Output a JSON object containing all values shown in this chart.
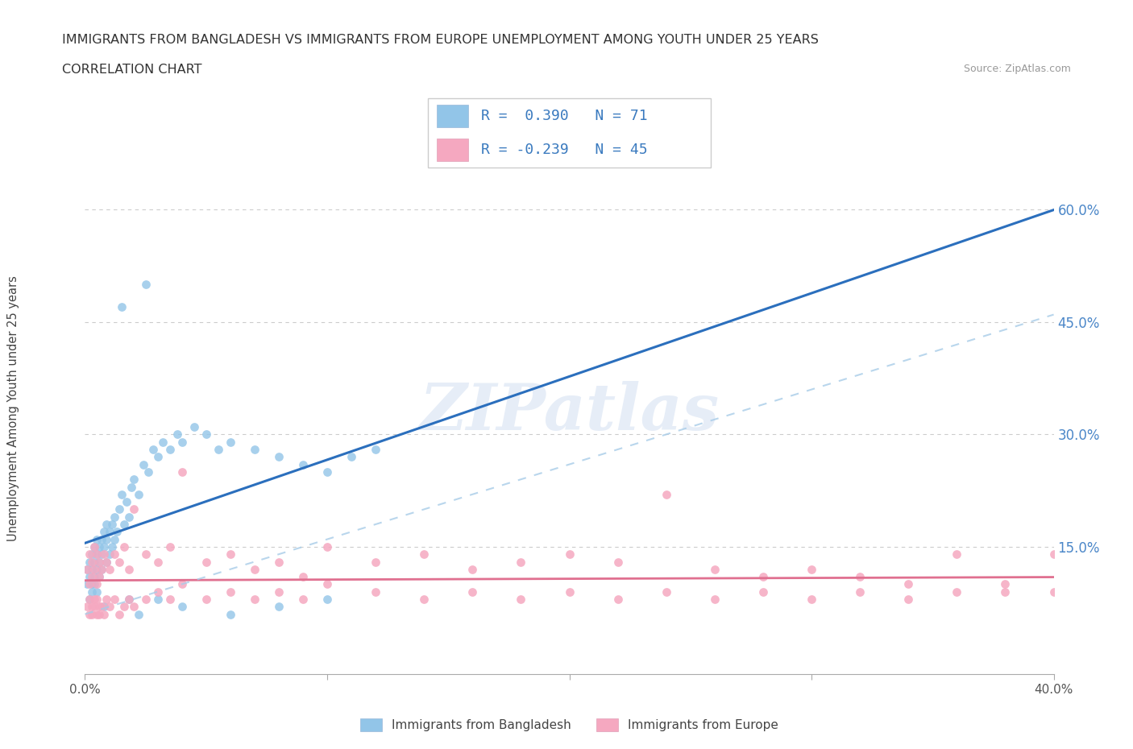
{
  "title_line1": "IMMIGRANTS FROM BANGLADESH VS IMMIGRANTS FROM EUROPE UNEMPLOYMENT AMONG YOUTH UNDER 25 YEARS",
  "title_line2": "CORRELATION CHART",
  "source_text": "Source: ZipAtlas.com",
  "watermark": "ZIPatlas",
  "ylabel": "Unemployment Among Youth under 25 years",
  "xlim": [
    0.0,
    0.4
  ],
  "ylim": [
    -0.02,
    0.68
  ],
  "ytick_right": [
    0.15,
    0.3,
    0.45,
    0.6
  ],
  "ytick_right_labels": [
    "15.0%",
    "30.0%",
    "45.0%",
    "60.0%"
  ],
  "bgrid_color": "#cccccc",
  "bangladesh_color": "#92C5E8",
  "europe_color": "#F5A8C0",
  "bangladesh_line_color": "#2b6fbd",
  "europe_line_color": "#e07090",
  "bangladesh_dash_color": "#92C5E8",
  "legend_R_bangladesh": "R =  0.390",
  "legend_N_bangladesh": "N = 71",
  "legend_R_europe": "R = -0.239",
  "legend_N_europe": "N = 45",
  "legend_label_bangladesh": "Immigrants from Bangladesh",
  "legend_label_europe": "Immigrants from Europe",
  "bangladesh_x": [
    0.001,
    0.001,
    0.002,
    0.002,
    0.002,
    0.003,
    0.003,
    0.003,
    0.003,
    0.004,
    0.004,
    0.004,
    0.004,
    0.005,
    0.005,
    0.005,
    0.005,
    0.006,
    0.006,
    0.006,
    0.007,
    0.007,
    0.007,
    0.008,
    0.008,
    0.009,
    0.009,
    0.009,
    0.01,
    0.01,
    0.011,
    0.011,
    0.012,
    0.012,
    0.013,
    0.014,
    0.015,
    0.016,
    0.017,
    0.018,
    0.019,
    0.02,
    0.022,
    0.024,
    0.026,
    0.028,
    0.03,
    0.032,
    0.035,
    0.038,
    0.04,
    0.045,
    0.05,
    0.055,
    0.06,
    0.07,
    0.08,
    0.09,
    0.1,
    0.11,
    0.12,
    0.025,
    0.015,
    0.008,
    0.018,
    0.022,
    0.03,
    0.04,
    0.06,
    0.08,
    0.1
  ],
  "bangladesh_y": [
    0.1,
    0.12,
    0.08,
    0.11,
    0.13,
    0.09,
    0.12,
    0.14,
    0.1,
    0.11,
    0.13,
    0.15,
    0.1,
    0.12,
    0.14,
    0.16,
    0.09,
    0.13,
    0.15,
    0.11,
    0.14,
    0.16,
    0.12,
    0.15,
    0.17,
    0.13,
    0.16,
    0.18,
    0.14,
    0.17,
    0.15,
    0.18,
    0.16,
    0.19,
    0.17,
    0.2,
    0.22,
    0.18,
    0.21,
    0.19,
    0.23,
    0.24,
    0.22,
    0.26,
    0.25,
    0.28,
    0.27,
    0.29,
    0.28,
    0.3,
    0.29,
    0.31,
    0.3,
    0.28,
    0.29,
    0.28,
    0.27,
    0.26,
    0.25,
    0.27,
    0.28,
    0.5,
    0.47,
    0.07,
    0.08,
    0.06,
    0.08,
    0.07,
    0.06,
    0.07,
    0.08
  ],
  "europe_x": [
    0.001,
    0.002,
    0.002,
    0.003,
    0.003,
    0.004,
    0.004,
    0.005,
    0.005,
    0.006,
    0.006,
    0.007,
    0.008,
    0.009,
    0.01,
    0.012,
    0.014,
    0.016,
    0.018,
    0.02,
    0.025,
    0.03,
    0.035,
    0.04,
    0.05,
    0.06,
    0.07,
    0.08,
    0.09,
    0.1,
    0.12,
    0.14,
    0.16,
    0.18,
    0.2,
    0.22,
    0.24,
    0.26,
    0.28,
    0.3,
    0.32,
    0.34,
    0.36,
    0.38,
    0.4
  ],
  "europe_y": [
    0.12,
    0.14,
    0.1,
    0.13,
    0.11,
    0.15,
    0.12,
    0.14,
    0.1,
    0.13,
    0.11,
    0.12,
    0.14,
    0.13,
    0.12,
    0.14,
    0.13,
    0.15,
    0.12,
    0.2,
    0.14,
    0.13,
    0.15,
    0.25,
    0.13,
    0.14,
    0.12,
    0.13,
    0.11,
    0.15,
    0.13,
    0.14,
    0.12,
    0.13,
    0.14,
    0.13,
    0.22,
    0.12,
    0.11,
    0.12,
    0.11,
    0.1,
    0.14,
    0.09,
    0.14
  ],
  "europe_y_low": [
    0.07,
    0.06,
    0.08,
    0.07,
    0.06,
    0.08,
    0.07,
    0.06,
    0.08,
    0.07,
    0.06,
    0.07,
    0.06,
    0.08,
    0.07,
    0.08,
    0.06,
    0.07,
    0.08,
    0.07,
    0.08,
    0.09,
    0.08,
    0.1,
    0.08,
    0.09,
    0.08,
    0.09,
    0.08,
    0.1,
    0.09,
    0.08,
    0.09,
    0.08,
    0.09,
    0.08,
    0.09,
    0.08,
    0.09,
    0.08,
    0.09,
    0.08,
    0.09,
    0.1,
    0.09
  ]
}
